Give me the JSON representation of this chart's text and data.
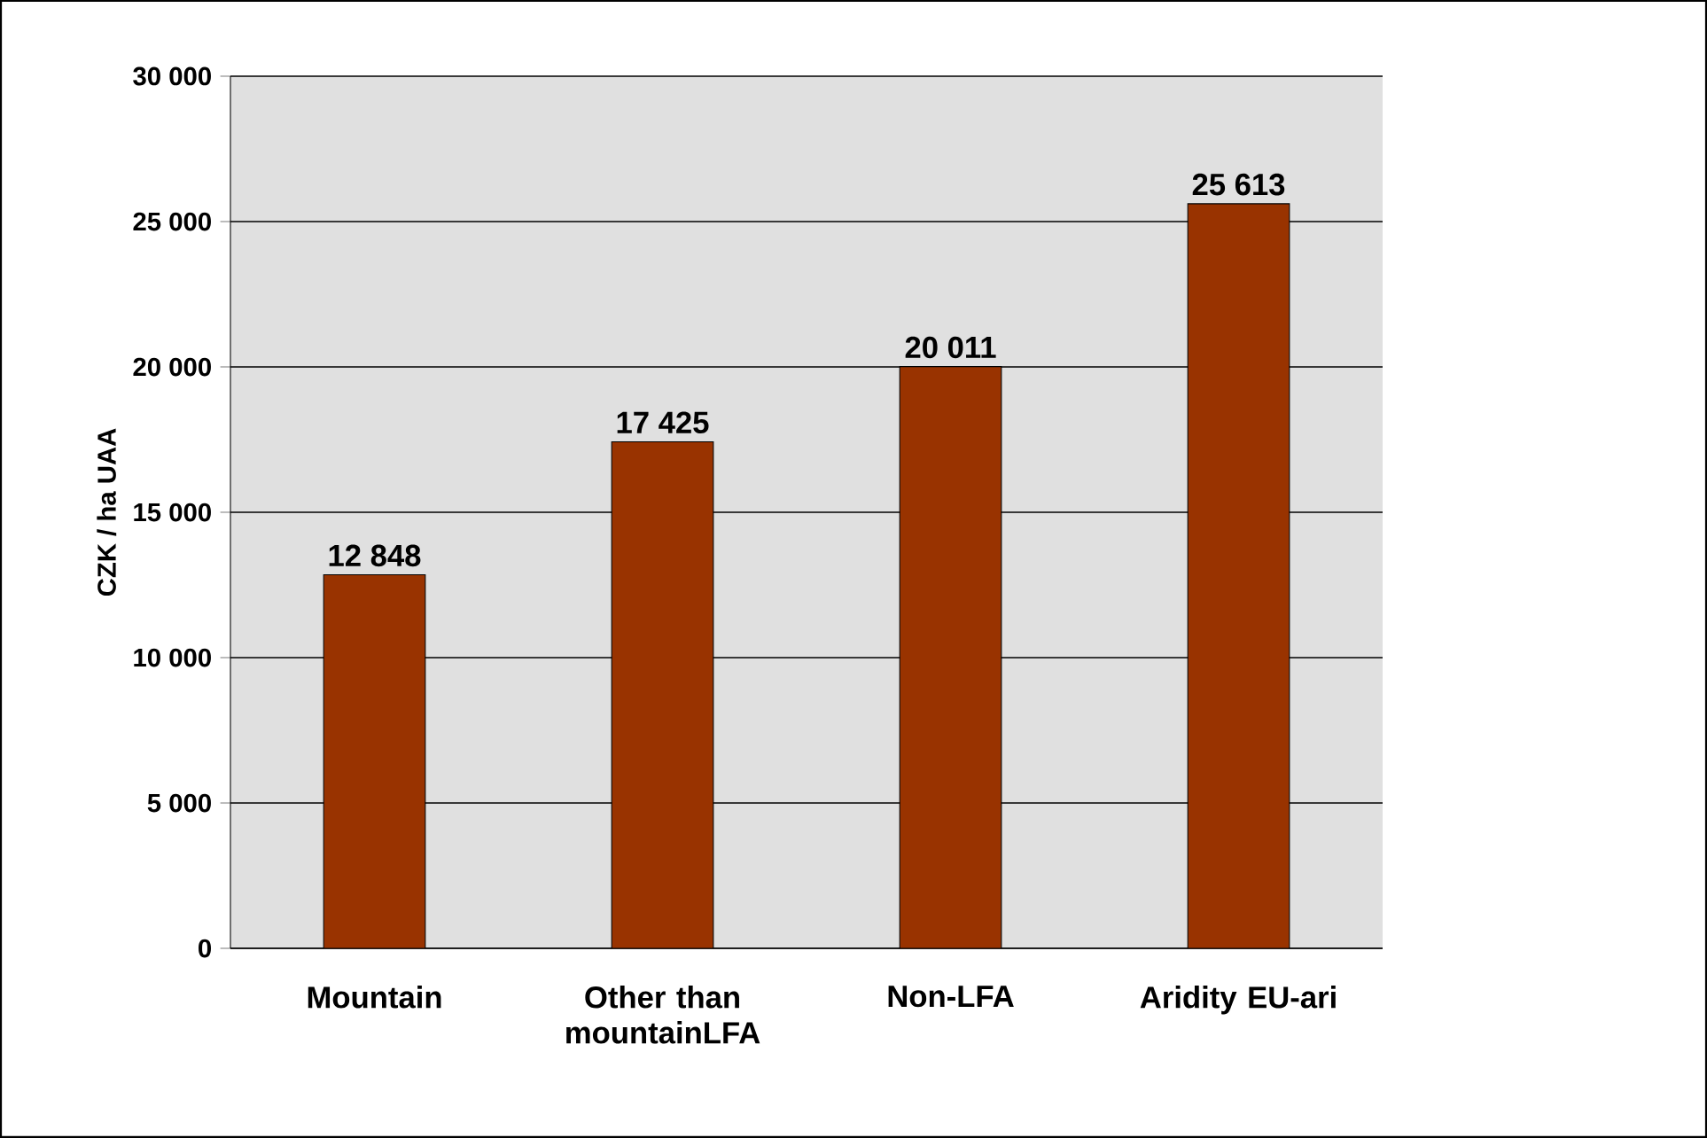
{
  "chart_data": {
    "type": "bar",
    "ylabel": "CZK / ha UAA",
    "categories": [
      "Mountain",
      "Other than mountainLFA",
      "Non-LFA",
      "Aridity EU-ari"
    ],
    "values": [
      12848,
      17425,
      20011,
      25613
    ],
    "value_labels": [
      "12 848",
      "17 425",
      "20 011",
      "25 613"
    ],
    "color": "#993300",
    "ylim": [
      0,
      30000
    ],
    "yticks": [
      0,
      {
        "value": 5000,
        "label": "5 000"
      },
      {
        "value": 10000,
        "label": "10 000"
      },
      {
        "value": 15000,
        "label": "15 000"
      },
      {
        "value": 20000,
        "label": "20 000"
      },
      {
        "value": 25000,
        "label": "25 000"
      },
      {
        "value": 30000,
        "label": "30 000"
      }
    ],
    "grid": "y"
  }
}
